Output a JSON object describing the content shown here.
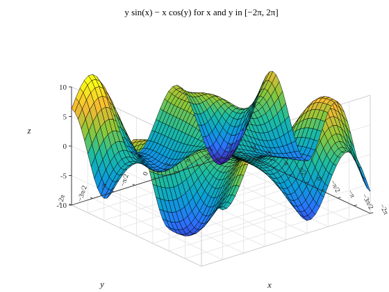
{
  "chart_data": {
    "type": "surface",
    "title": "y sin(x) − x cos(y) for x and y in [−2π, 2π]",
    "function": "y*sin(x) - x*cos(y)",
    "xlabel": "x",
    "ylabel": "y",
    "zlabel": "z",
    "x_range": [
      -6.2832,
      6.2832
    ],
    "y_range": [
      -6.2832,
      6.2832
    ],
    "zlim": [
      -10,
      10
    ],
    "grid_count": 41,
    "z_ticks": [
      -10,
      -5,
      0,
      5,
      10
    ],
    "z_tick_labels": [
      "-10",
      "-5",
      "0",
      "5",
      "10"
    ],
    "x_ticks": [
      -6.2832,
      -4.7124,
      -3.1416,
      -1.5708,
      0,
      1.5708,
      3.1416,
      4.7124,
      6.2832
    ],
    "x_tick_labels": [
      "−2π",
      "−3π/2",
      "−π",
      "−π/2",
      "0",
      "π/2",
      "π",
      "3π/2",
      "2π"
    ],
    "y_ticks": [
      -6.2832,
      -4.7124,
      -3.1416,
      -1.5708,
      0,
      1.5708,
      3.1416,
      4.7124,
      6.2832
    ],
    "y_tick_labels": [
      "−2π",
      "−3π/2",
      "−π",
      "−π/2",
      "0",
      "π/2",
      "π",
      "3π/2",
      "2π"
    ],
    "colormap": [
      "#3e26a8",
      "#2c72fd",
      "#0ba0d4",
      "#1ebd9f",
      "#8bc83a",
      "#f5b834",
      "#f9f917"
    ],
    "grid": true,
    "edge_color": "#000000"
  }
}
